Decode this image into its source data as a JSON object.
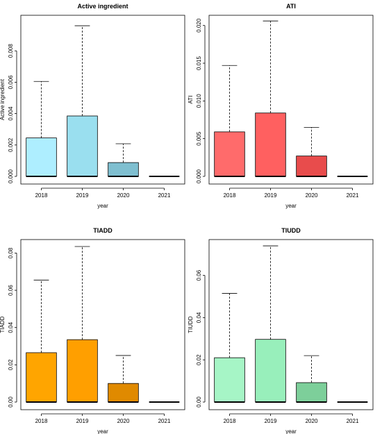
{
  "chart_data": [
    {
      "type": "boxplot",
      "title": "Active ingredient",
      "xlabel": "year",
      "ylabel": "Active ingredient",
      "categories": [
        "2018",
        "2019",
        "2020",
        "2021"
      ],
      "colors": [
        "#aeeeff",
        "#9adfef",
        "#7fbfd0",
        "#7fbfd0"
      ],
      "ylim": [
        0,
        0.01
      ],
      "yticks": [
        0.0,
        0.002,
        0.004,
        0.006,
        0.008
      ],
      "ytick_labels": [
        "0.000",
        "0.002",
        "0.004",
        "0.006",
        "0.008"
      ],
      "boxes": [
        {
          "q1": 0.0,
          "median": 0.0,
          "q3": 0.00245,
          "whisker_low": 0.0,
          "whisker_high": 0.00605
        },
        {
          "q1": 0.0,
          "median": 0.0,
          "q3": 0.00385,
          "whisker_low": 0.0,
          "whisker_high": 0.0096
        },
        {
          "q1": 0.0,
          "median": 0.0,
          "q3": 0.00088,
          "whisker_low": 0.0,
          "whisker_high": 0.00208
        },
        {
          "q1": 0.0,
          "median": 0.0,
          "q3": 0.0,
          "whisker_low": 0.0,
          "whisker_high": 0.0
        }
      ]
    },
    {
      "type": "boxplot",
      "title": "ATI",
      "xlabel": "year",
      "ylabel": "ATI",
      "categories": [
        "2018",
        "2019",
        "2020",
        "2021"
      ],
      "colors": [
        "#ff6b6b",
        "#ff6060",
        "#e84c4c",
        "#e84c4c"
      ],
      "ylim": [
        0,
        0.0208
      ],
      "yticks": [
        0.0,
        0.005,
        0.01,
        0.015,
        0.02
      ],
      "ytick_labels": [
        "0.000",
        "0.005",
        "0.010",
        "0.015",
        "0.020"
      ],
      "boxes": [
        {
          "q1": 0.0,
          "median": 0.0,
          "q3": 0.0059,
          "whisker_low": 0.0,
          "whisker_high": 0.0147
        },
        {
          "q1": 0.0,
          "median": 0.0,
          "q3": 0.0084,
          "whisker_low": 0.0,
          "whisker_high": 0.0206
        },
        {
          "q1": 0.0,
          "median": 0.0,
          "q3": 0.0027,
          "whisker_low": 0.0,
          "whisker_high": 0.0065
        },
        {
          "q1": 0.0,
          "median": 0.0,
          "q3": 0.0,
          "whisker_low": 0.0,
          "whisker_high": 0.0
        }
      ]
    },
    {
      "type": "boxplot",
      "title": "TIADD",
      "xlabel": "year",
      "ylabel": "TIADD",
      "categories": [
        "2018",
        "2019",
        "2020",
        "2021"
      ],
      "colors": [
        "#ffa500",
        "#ff9f00",
        "#e08a00",
        "#e08a00"
      ],
      "ylim": [
        0,
        0.085
      ],
      "yticks": [
        0.0,
        0.02,
        0.04,
        0.06,
        0.08
      ],
      "ytick_labels": [
        "0.00",
        "0.02",
        "0.04",
        "0.06",
        "0.08"
      ],
      "boxes": [
        {
          "q1": 0.0,
          "median": 0.0,
          "q3": 0.0265,
          "whisker_low": 0.0,
          "whisker_high": 0.0655
        },
        {
          "q1": 0.0,
          "median": 0.0,
          "q3": 0.0335,
          "whisker_low": 0.0,
          "whisker_high": 0.0835
        },
        {
          "q1": 0.0,
          "median": 0.0,
          "q3": 0.01,
          "whisker_low": 0.0,
          "whisker_high": 0.025
        },
        {
          "q1": 0.0,
          "median": 0.0,
          "q3": 0.0,
          "whisker_low": 0.0,
          "whisker_high": 0.0
        }
      ]
    },
    {
      "type": "boxplot",
      "title": "TIUDD",
      "xlabel": "year",
      "ylabel": "TIUDD",
      "categories": [
        "2018",
        "2019",
        "2020",
        "2021"
      ],
      "colors": [
        "#a6f5c6",
        "#98efbb",
        "#7dcf9a",
        "#7dcf9a"
      ],
      "ylim": [
        0,
        0.075
      ],
      "yticks": [
        0.0,
        0.02,
        0.04,
        0.06
      ],
      "ytick_labels": [
        "0.00",
        "0.02",
        "0.04",
        "0.06"
      ],
      "boxes": [
        {
          "q1": 0.0,
          "median": 0.0,
          "q3": 0.021,
          "whisker_low": 0.0,
          "whisker_high": 0.0515
        },
        {
          "q1": 0.0,
          "median": 0.0,
          "q3": 0.0297,
          "whisker_low": 0.0,
          "whisker_high": 0.074
        },
        {
          "q1": 0.0,
          "median": 0.0,
          "q3": 0.0092,
          "whisker_low": 0.0,
          "whisker_high": 0.022
        },
        {
          "q1": 0.0,
          "median": 0.0,
          "q3": 0.0,
          "whisker_low": 0.0,
          "whisker_high": 0.0
        }
      ]
    }
  ]
}
